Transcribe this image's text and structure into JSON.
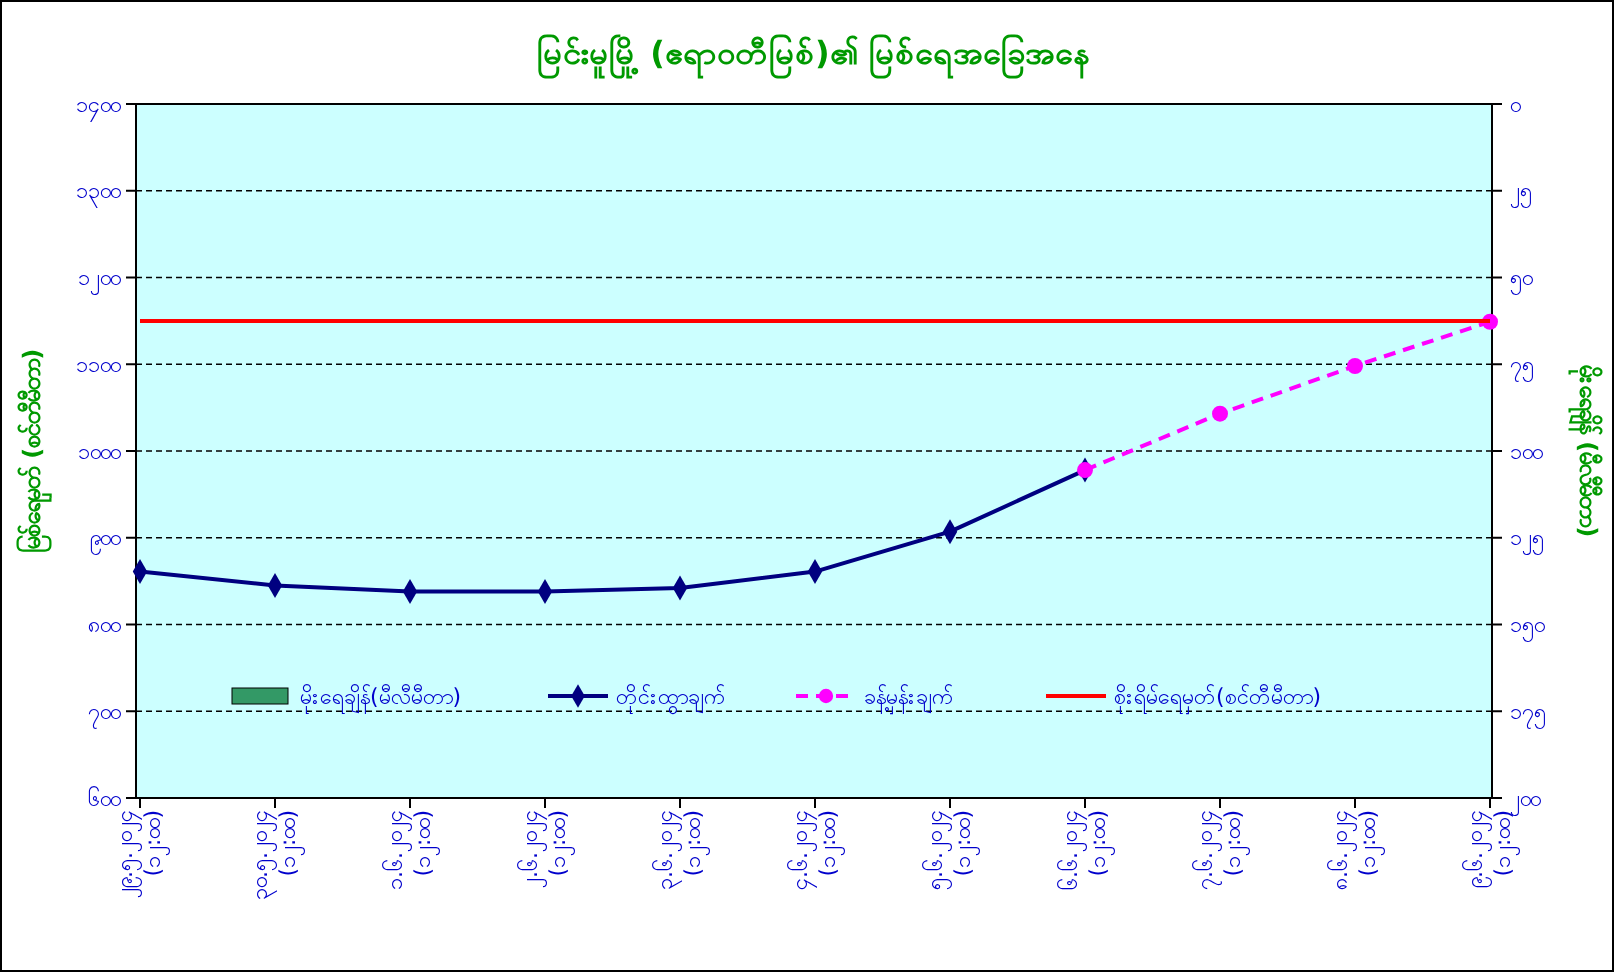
{
  "chart_data": {
    "type": "line",
    "title": "မြင်းမူမြို့ (ဧရာဝတီမြစ်)၏ မြစ်ရေအခြေအနေ",
    "ylabel": "မြစ်ရေမှတ် (စင်တီမီတာ)",
    "y2label": "မိုးရေချိန် (မီလီမီတာ)",
    "categories": [
      "၂၉.၅.၂၀၂၄\n(၁၂:၀၀)",
      "၃၀.၅.၂၀၂၄\n(၁၂:၀၀)",
      "၁.၆.၂၀၂၄\n(၁၂:၀၀)",
      "၂.၆.၂၀၂၄\n(၁၂:၀၀)",
      "၃.၆.၂၀၂၄\n(၁၂:၀၀)",
      "၄.၆.၂၀၂၄\n(၁၂:၀၀)",
      "၅.၆.၂၀၂၄\n(၁၂:၀၀)",
      "၆.၆.၂၀၂၄\n(၁၂:၀၀)",
      "၇.၆.၂၀၂၄\n(၁၂:၀၀)",
      "၈.၆.၂၀၂၄\n(၁၂:၀၀)",
      "၉.၆.၂၀၂၄\n(၁၂:၀၀)"
    ],
    "series": [
      {
        "name": "မိုးရေချိန်(မီလီမီတာ)",
        "type": "bar",
        "color": "#339966",
        "values": [
          null,
          null,
          null,
          null,
          null,
          null,
          null,
          null,
          null,
          null,
          null
        ]
      },
      {
        "name": "တိုင်းထွာချက်",
        "color": "#000080",
        "marker": "diamond",
        "line_style": "solid",
        "values": [
          861,
          845,
          838,
          838,
          842,
          861,
          907,
          978,
          null,
          null,
          null
        ]
      },
      {
        "name": "ခန့်မှန်းချက်",
        "color": "#ff00ff",
        "marker": "circle",
        "line_style": "dashed",
        "values": [
          null,
          null,
          null,
          null,
          null,
          null,
          null,
          978,
          1043,
          1098,
          1149
        ]
      },
      {
        "name": "စိုးရိမ်ရေမှတ်(စင်တီမီတာ)",
        "color": "#ff0000",
        "marker": "none",
        "line_style": "solid",
        "values": [
          1150,
          1150,
          1150,
          1150,
          1150,
          1150,
          1150,
          1150,
          1150,
          1150,
          1150
        ]
      }
    ],
    "ylim": [
      600,
      1400
    ],
    "yticks": [
      {
        "value": 600,
        "label": "၆၀၀"
      },
      {
        "value": 700,
        "label": "၇၀၀"
      },
      {
        "value": 800,
        "label": "၈၀၀"
      },
      {
        "value": 900,
        "label": "၉၀၀"
      },
      {
        "value": 1000,
        "label": "၁၀၀၀"
      },
      {
        "value": 1100,
        "label": "၁၁၀၀"
      },
      {
        "value": 1200,
        "label": "၁၂၀၀"
      },
      {
        "value": 1300,
        "label": "၁၃၀၀"
      },
      {
        "value": 1400,
        "label": "၁၄၀၀"
      }
    ],
    "y2lim": [
      200,
      0
    ],
    "y2ticks": [
      {
        "value": 0,
        "label": "၀"
      },
      {
        "value": 25,
        "label": "၂၅"
      },
      {
        "value": 50,
        "label": "၅၀"
      },
      {
        "value": 75,
        "label": "၇၅"
      },
      {
        "value": 100,
        "label": "၁၀၀"
      },
      {
        "value": 125,
        "label": "၁၂၅"
      },
      {
        "value": 150,
        "label": "၁၅၀"
      },
      {
        "value": 175,
        "label": "၁၇၅"
      },
      {
        "value": 200,
        "label": "၂၀၀"
      }
    ],
    "grid": "y",
    "legend": "bottom"
  }
}
